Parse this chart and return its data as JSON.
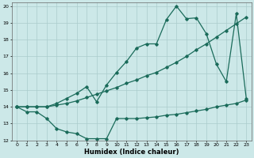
{
  "xlabel": "Humidex (Indice chaleur)",
  "background_color": "#cce8e8",
  "grid_color": "#aacccc",
  "line_color": "#1a6b5a",
  "xlim": [
    -0.5,
    23.5
  ],
  "ylim": [
    12,
    20.2
  ],
  "xticks": [
    0,
    1,
    2,
    3,
    4,
    5,
    6,
    7,
    8,
    9,
    10,
    11,
    12,
    13,
    14,
    15,
    16,
    17,
    18,
    19,
    20,
    21,
    22,
    23
  ],
  "yticks": [
    12,
    13,
    14,
    15,
    16,
    17,
    18,
    19,
    20
  ],
  "line1_x": [
    0,
    1,
    2,
    3,
    4,
    5,
    6,
    7,
    8,
    9,
    10,
    11,
    12,
    13,
    14,
    15,
    16,
    17,
    18,
    19,
    20,
    21,
    22,
    23
  ],
  "line1_y": [
    14.0,
    13.7,
    13.7,
    13.3,
    12.7,
    12.5,
    12.4,
    12.1,
    12.1,
    12.1,
    13.3,
    13.3,
    13.3,
    13.35,
    13.4,
    13.5,
    13.55,
    13.65,
    13.75,
    13.85,
    14.0,
    14.1,
    14.2,
    14.4
  ],
  "line2_x": [
    0,
    1,
    2,
    3,
    4,
    5,
    6,
    7,
    8,
    9,
    10,
    11,
    12,
    13,
    14,
    15,
    16,
    17,
    18,
    19,
    20,
    21,
    22,
    23
  ],
  "line2_y": [
    14.0,
    14.0,
    14.0,
    14.0,
    14.1,
    14.2,
    14.35,
    14.55,
    14.75,
    14.95,
    15.15,
    15.4,
    15.6,
    15.85,
    16.05,
    16.35,
    16.65,
    17.0,
    17.4,
    17.75,
    18.15,
    18.55,
    18.95,
    19.35
  ],
  "line3_x": [
    0,
    1,
    2,
    3,
    4,
    5,
    6,
    7,
    8,
    9,
    10,
    11,
    12,
    13,
    14,
    15,
    16,
    17,
    18,
    19,
    20,
    21,
    22,
    23
  ],
  "line3_y": [
    14.0,
    14.0,
    14.0,
    14.0,
    14.2,
    14.5,
    14.8,
    15.2,
    14.3,
    15.3,
    16.05,
    16.7,
    17.5,
    17.75,
    17.75,
    19.2,
    20.0,
    19.25,
    19.3,
    18.35,
    16.55,
    15.5,
    19.55,
    14.5
  ]
}
